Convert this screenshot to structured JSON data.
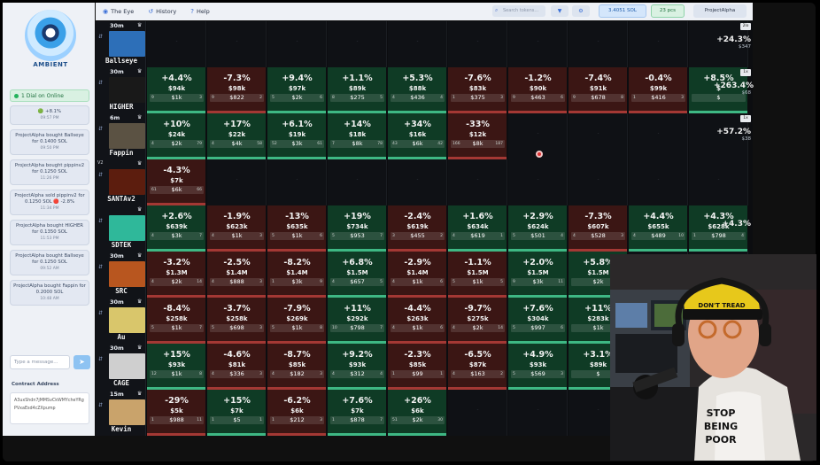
{
  "topbar": {
    "nav": [
      {
        "label": "The Eye",
        "icon": "eye-icon"
      },
      {
        "label": "History",
        "icon": "history-icon"
      },
      {
        "label": "Help",
        "icon": "help-icon"
      }
    ],
    "search_placeholder": "Search tokens...",
    "sol_balance": "3.4051 SOL",
    "pcs": "23 pcs",
    "user": "ProjectAlpha"
  },
  "sidebar": {
    "logo_text": "AMBIENT",
    "online": "1 Dial on Online",
    "feed": [
      {
        "text": "🟢 +8.1%",
        "time": "09:57 PM"
      },
      {
        "text": "ProjectAlpha bought Ballseye for 0.1400 SOL",
        "time": "09:50 PM"
      },
      {
        "text": "ProjectAlpha bought pippinv2 for 0.1250 SOL",
        "time": "11:26 PM"
      },
      {
        "text": "ProjectAlpha sold pippinv2 for 0.1250 SOL 🔴 -2.8%",
        "time": "11:34 PM"
      },
      {
        "text": "ProjectAlpha bought HIGHER for 0.1350 SOL",
        "time": "11:53 PM"
      },
      {
        "text": "ProjectAlpha bought Ballseye for 0.1250 SOL",
        "time": "09:52 AM"
      },
      {
        "text": "ProjectAlpha bought Fappin for 0.2000 SOL",
        "time": "10:48 AM"
      }
    ],
    "message_placeholder": "Type a message...",
    "contract_label": "Contract Address",
    "contract_value": "A3uxShdn7jMMSvCkWMYcheYRgPVxaEsd4cZXpump"
  },
  "rows": [
    {
      "rank": "",
      "age": "30m",
      "name": "Ballseye",
      "right": {
        "pct": "+24.3%",
        "sub": "$347"
      },
      "badge": "2lo",
      "cells": []
    },
    {
      "rank": "",
      "age": "30m",
      "name": "HIGHER",
      "right": {
        "pct": "+263.4%",
        "sub": "$68"
      },
      "badge": "1x",
      "cells": [
        {
          "c": "g",
          "pct": "+4.4%",
          "mc": "$94k",
          "vol": "$1k",
          "l": "9",
          "r": "3"
        },
        {
          "c": "r",
          "pct": "-7.3%",
          "mc": "$98k",
          "vol": "$822",
          "l": "9",
          "r": "2"
        },
        {
          "c": "g",
          "pct": "+9.4%",
          "mc": "$97k",
          "vol": "$2k",
          "l": "5",
          "r": "6"
        },
        {
          "c": "g",
          "pct": "+1.1%",
          "mc": "$89k",
          "vol": "$275",
          "l": "8",
          "r": "5"
        },
        {
          "c": "g",
          "pct": "+5.3%",
          "mc": "$88k",
          "vol": "$436",
          "l": "4",
          "r": "4"
        },
        {
          "c": "r",
          "pct": "-7.6%",
          "mc": "$83k",
          "vol": "$375",
          "l": "1",
          "r": "3"
        },
        {
          "c": "r",
          "pct": "-1.2%",
          "mc": "$90k",
          "vol": "$463",
          "l": "9",
          "r": "6"
        },
        {
          "c": "r",
          "pct": "-7.4%",
          "mc": "$91k",
          "vol": "$678",
          "l": "9",
          "r": "8"
        },
        {
          "c": "r",
          "pct": "-0.4%",
          "mc": "$99k",
          "vol": "$416",
          "l": "1",
          "r": "3"
        },
        {
          "c": "g",
          "pct": "+8.5%",
          "mc": "$",
          "vol": "$",
          "l": "",
          "r": ""
        }
      ]
    },
    {
      "rank": "",
      "age": "6m",
      "name": "Fappin",
      "right": {
        "pct": "+57.2%",
        "sub": "$38"
      },
      "badge": "1x",
      "cells": [
        {
          "c": "g",
          "pct": "+10%",
          "mc": "$24k",
          "vol": "$2k",
          "l": "4",
          "r": "79"
        },
        {
          "c": "g",
          "pct": "+17%",
          "mc": "$22k",
          "vol": "$4k",
          "l": "4",
          "r": "58"
        },
        {
          "c": "g",
          "pct": "+6.1%",
          "mc": "$19k",
          "vol": "$3k",
          "l": "52",
          "r": "61"
        },
        {
          "c": "g",
          "pct": "+14%",
          "mc": "$18k",
          "vol": "$8k",
          "l": "7",
          "r": "78"
        },
        {
          "c": "g",
          "pct": "+34%",
          "mc": "$16k",
          "vol": "$6k",
          "l": "43",
          "r": "42"
        },
        {
          "c": "r",
          "pct": "-33%",
          "mc": "$12k",
          "vol": "$8k",
          "l": "166",
          "r": "187"
        }
      ]
    },
    {
      "rank": "V2",
      "age": "",
      "name": "SANTAv2",
      "right": null,
      "badge": "",
      "cells": [
        {
          "c": "r",
          "pct": "-4.3%",
          "mc": "$7k",
          "vol": "$6k",
          "l": "61",
          "r": "66"
        }
      ]
    },
    {
      "rank": "",
      "age": "",
      "name": "SDTEK",
      "right": {
        "pct": "+4.3%",
        "sub": ""
      },
      "badge": "",
      "cells": [
        {
          "c": "g",
          "pct": "+2.6%",
          "mc": "$639k",
          "vol": "$3k",
          "l": "4",
          "r": "7"
        },
        {
          "c": "r",
          "pct": "-1.9%",
          "mc": "$623k",
          "vol": "$1k",
          "l": "4",
          "r": "3"
        },
        {
          "c": "r",
          "pct": "-13%",
          "mc": "$635k",
          "vol": "$1k",
          "l": "5",
          "r": "6"
        },
        {
          "c": "g",
          "pct": "+19%",
          "mc": "$734k",
          "vol": "$953",
          "l": "5",
          "r": "7"
        },
        {
          "c": "r",
          "pct": "-2.4%",
          "mc": "$619k",
          "vol": "$455",
          "l": "3",
          "r": "2"
        },
        {
          "c": "g",
          "pct": "+1.6%",
          "mc": "$634k",
          "vol": "$619",
          "l": "4",
          "r": "1"
        },
        {
          "c": "g",
          "pct": "+2.9%",
          "mc": "$624k",
          "vol": "$501",
          "l": "5",
          "r": "4"
        },
        {
          "c": "r",
          "pct": "-7.3%",
          "mc": "$607k",
          "vol": "$528",
          "l": "4",
          "r": "3"
        },
        {
          "c": "g",
          "pct": "+4.4%",
          "mc": "$655k",
          "vol": "$489",
          "l": "4",
          "r": "10"
        },
        {
          "c": "g",
          "pct": "+4.3%",
          "mc": "$628k",
          "vol": "$798",
          "l": "1",
          "r": "4"
        }
      ]
    },
    {
      "rank": "",
      "age": "30m",
      "name": "SRC",
      "right": null,
      "badge": "",
      "cells": [
        {
          "c": "r",
          "pct": "-3.2%",
          "mc": "$1.3M",
          "vol": "$2k",
          "l": "4",
          "r": "14"
        },
        {
          "c": "r",
          "pct": "-2.5%",
          "mc": "$1.4M",
          "vol": "$888",
          "l": "4",
          "r": "3"
        },
        {
          "c": "r",
          "pct": "-8.2%",
          "mc": "$1.4M",
          "vol": "$3k",
          "l": "1",
          "r": "9"
        },
        {
          "c": "g",
          "pct": "+6.8%",
          "mc": "$1.5M",
          "vol": "$657",
          "l": "4",
          "r": "5"
        },
        {
          "c": "r",
          "pct": "-2.9%",
          "mc": "$1.4M",
          "vol": "$1k",
          "l": "4",
          "r": "6"
        },
        {
          "c": "r",
          "pct": "-1.1%",
          "mc": "$1.5M",
          "vol": "$1k",
          "l": "5",
          "r": "5"
        },
        {
          "c": "g",
          "pct": "+2.0%",
          "mc": "$1.5M",
          "vol": "$3k",
          "l": "9",
          "r": "11"
        },
        {
          "c": "g",
          "pct": "+5.8%",
          "mc": "$1.5M",
          "vol": "$2k",
          "l": "",
          "r": ""
        }
      ]
    },
    {
      "rank": "",
      "age": "30m",
      "name": "Au",
      "right": null,
      "badge": "",
      "cells": [
        {
          "c": "r",
          "pct": "-8.4%",
          "mc": "$258k",
          "vol": "$1k",
          "l": "5",
          "r": "7"
        },
        {
          "c": "r",
          "pct": "-3.7%",
          "mc": "$258k",
          "vol": "$698",
          "l": "5",
          "r": "3"
        },
        {
          "c": "r",
          "pct": "-7.9%",
          "mc": "$269k",
          "vol": "$1k",
          "l": "5",
          "r": "8"
        },
        {
          "c": "g",
          "pct": "+11%",
          "mc": "$292k",
          "vol": "$798",
          "l": "10",
          "r": "7"
        },
        {
          "c": "r",
          "pct": "-4.4%",
          "mc": "$263k",
          "vol": "$1k",
          "l": "4",
          "r": "6"
        },
        {
          "c": "r",
          "pct": "-9.7%",
          "mc": "$275k",
          "vol": "$2k",
          "l": "4",
          "r": "14"
        },
        {
          "c": "g",
          "pct": "+7.6%",
          "mc": "$304k",
          "vol": "$997",
          "l": "5",
          "r": "6"
        },
        {
          "c": "g",
          "pct": "+11%",
          "mc": "$283k",
          "vol": "$1k",
          "l": "",
          "r": ""
        }
      ]
    },
    {
      "rank": "",
      "age": "30m",
      "name": "CAGE",
      "right": null,
      "badge": "",
      "cells": [
        {
          "c": "g",
          "pct": "+15%",
          "mc": "$93k",
          "vol": "$1k",
          "l": "12",
          "r": "8"
        },
        {
          "c": "r",
          "pct": "-4.6%",
          "mc": "$81k",
          "vol": "$336",
          "l": "4",
          "r": "3"
        },
        {
          "c": "r",
          "pct": "-8.7%",
          "mc": "$85k",
          "vol": "$182",
          "l": "4",
          "r": "3"
        },
        {
          "c": "g",
          "pct": "+9.2%",
          "mc": "$93k",
          "vol": "$312",
          "l": "4",
          "r": "4"
        },
        {
          "c": "r",
          "pct": "-2.3%",
          "mc": "$85k",
          "vol": "$99",
          "l": "1",
          "r": "1"
        },
        {
          "c": "r",
          "pct": "-6.5%",
          "mc": "$87k",
          "vol": "$163",
          "l": "4",
          "r": "2"
        },
        {
          "c": "g",
          "pct": "+4.9%",
          "mc": "$93k",
          "vol": "$569",
          "l": "5",
          "r": "3"
        },
        {
          "c": "g",
          "pct": "+3.1%",
          "mc": "$89k",
          "vol": "$",
          "l": "",
          "r": ""
        }
      ]
    },
    {
      "rank": "",
      "age": "15m",
      "name": "Kevin",
      "right": null,
      "badge": "",
      "cells": [
        {
          "c": "r",
          "pct": "-29%",
          "mc": "$5k",
          "vol": "$988",
          "l": "1",
          "r": "11"
        },
        {
          "c": "g",
          "pct": "+15%",
          "mc": "$7k",
          "vol": "$5",
          "l": "1",
          "r": "1"
        },
        {
          "c": "r",
          "pct": "-6.2%",
          "mc": "$6k",
          "vol": "$212",
          "l": "1",
          "r": "3"
        },
        {
          "c": "g",
          "pct": "+7.6%",
          "mc": "$7k",
          "vol": "$878",
          "l": "1",
          "r": "7"
        },
        {
          "c": "g",
          "pct": "+26%",
          "mc": "$6k",
          "vol": "$2k",
          "l": "51",
          "r": "30"
        }
      ]
    }
  ],
  "webcam": {
    "cap_text": "DON'T TREAD",
    "shirt_text": "STOP BEING POOR"
  }
}
